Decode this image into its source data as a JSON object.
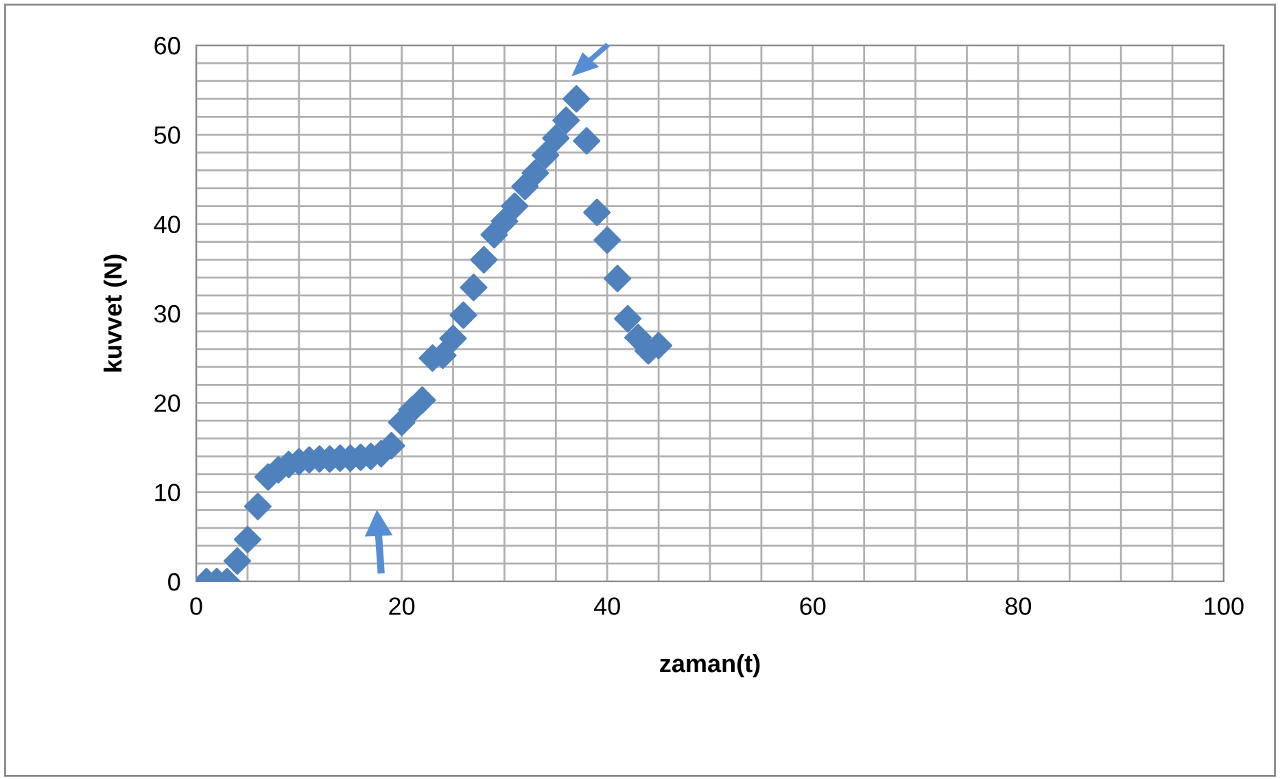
{
  "chart_data": {
    "type": "scatter",
    "xlabel": "zaman(t)",
    "ylabel": "kuvvet (N)",
    "x": [
      1,
      2,
      3,
      4,
      5,
      6,
      7,
      8,
      9,
      10,
      11,
      12,
      13,
      14,
      15,
      16,
      17,
      18,
      19,
      20,
      21,
      22,
      23,
      24,
      25,
      26,
      27,
      28,
      29,
      30,
      31,
      32,
      33,
      34,
      35,
      36,
      37,
      38,
      39,
      40,
      41,
      42,
      43,
      44,
      45
    ],
    "series": [
      {
        "color": "#4f81bd",
        "values": [
          0,
          0,
          0,
          2.3,
          4.7,
          8.4,
          11.7,
          12.5,
          13.1,
          13.4,
          13.6,
          13.7,
          13.7,
          13.8,
          13.8,
          13.9,
          14.0,
          14.3,
          15.2,
          17.8,
          19.2,
          20.3,
          25.0,
          25.3,
          27.2,
          29.8,
          32.9,
          36.0,
          38.8,
          40.3,
          42.0,
          44.2,
          45.7,
          47.7,
          49.6,
          51.6,
          54.0,
          49.3,
          41.3,
          38.2,
          33.9,
          29.4,
          27.3,
          25.8,
          26.4
        ]
      }
    ],
    "xlim": [
      0,
      100
    ],
    "ylim": [
      0,
      60
    ],
    "xticks": [
      0,
      {
        "value": 5,
        "label": null
      },
      {
        "value": 10,
        "label": null
      },
      {
        "value": 15,
        "label": null
      },
      20,
      {
        "value": 25,
        "label": null
      },
      {
        "value": 30,
        "label": null
      },
      {
        "value": 35,
        "label": null
      },
      40,
      {
        "value": 45,
        "label": null
      },
      {
        "value": 50,
        "label": null
      },
      {
        "value": 55,
        "label": null
      },
      60,
      {
        "value": 65,
        "label": null
      },
      {
        "value": 70,
        "label": null
      },
      {
        "value": 75,
        "label": null
      },
      80,
      {
        "value": 85,
        "label": null
      },
      {
        "value": 90,
        "label": null
      },
      {
        "value": 95,
        "label": null
      },
      100
    ],
    "yticks": [
      0,
      {
        "value": 2,
        "label": null
      },
      {
        "value": 4,
        "label": null
      },
      {
        "value": 6,
        "label": null
      },
      {
        "value": 8,
        "label": null
      },
      10,
      {
        "value": 12,
        "label": null
      },
      {
        "value": 14,
        "label": null
      },
      {
        "value": 16,
        "label": null
      },
      {
        "value": 18,
        "label": null
      },
      20,
      {
        "value": 22,
        "label": null
      },
      {
        "value": 24,
        "label": null
      },
      {
        "value": 26,
        "label": null
      },
      {
        "value": 28,
        "label": null
      },
      30,
      {
        "value": 32,
        "label": null
      },
      {
        "value": 34,
        "label": null
      },
      {
        "value": 36,
        "label": null
      },
      {
        "value": 38,
        "label": null
      },
      40,
      {
        "value": 42,
        "label": null
      },
      {
        "value": 44,
        "label": null
      },
      {
        "value": 46,
        "label": null
      },
      {
        "value": 48,
        "label": null
      },
      50,
      {
        "value": 52,
        "label": null
      },
      {
        "value": 54,
        "label": null
      },
      {
        "value": 56,
        "label": null
      },
      {
        "value": 58,
        "label": null
      },
      60
    ],
    "grid": true,
    "marker": "diamond",
    "legend": false
  }
}
